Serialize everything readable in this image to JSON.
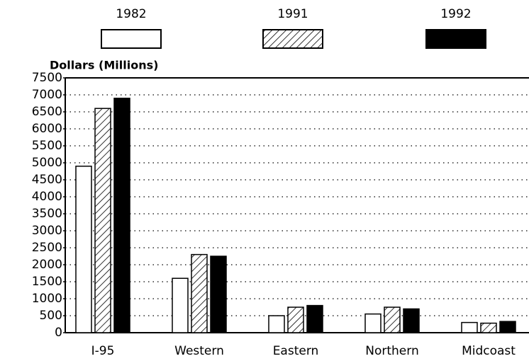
{
  "chart_data": {
    "type": "bar",
    "y_label": "Dollars (Millions)",
    "categories": [
      "I-95",
      "Western",
      "Eastern",
      "Northern",
      "Midcoast"
    ],
    "series": [
      {
        "name": "1982",
        "color": "#ffffff",
        "values": [
          4900,
          1600,
          500,
          550,
          300
        ]
      },
      {
        "name": "1991",
        "color": "#ffffff",
        "hatch": true,
        "values": [
          6600,
          2300,
          750,
          750,
          280
        ]
      },
      {
        "name": "1992",
        "color": "#000000",
        "values": [
          6900,
          2250,
          800,
          700,
          330
        ]
      }
    ],
    "ylim": [
      0,
      7500
    ],
    "yticks": [
      0,
      500,
      1000,
      1500,
      2000,
      2500,
      3000,
      3500,
      4000,
      4500,
      5000,
      5500,
      6000,
      6500,
      7000,
      7500
    ],
    "grid": true
  }
}
